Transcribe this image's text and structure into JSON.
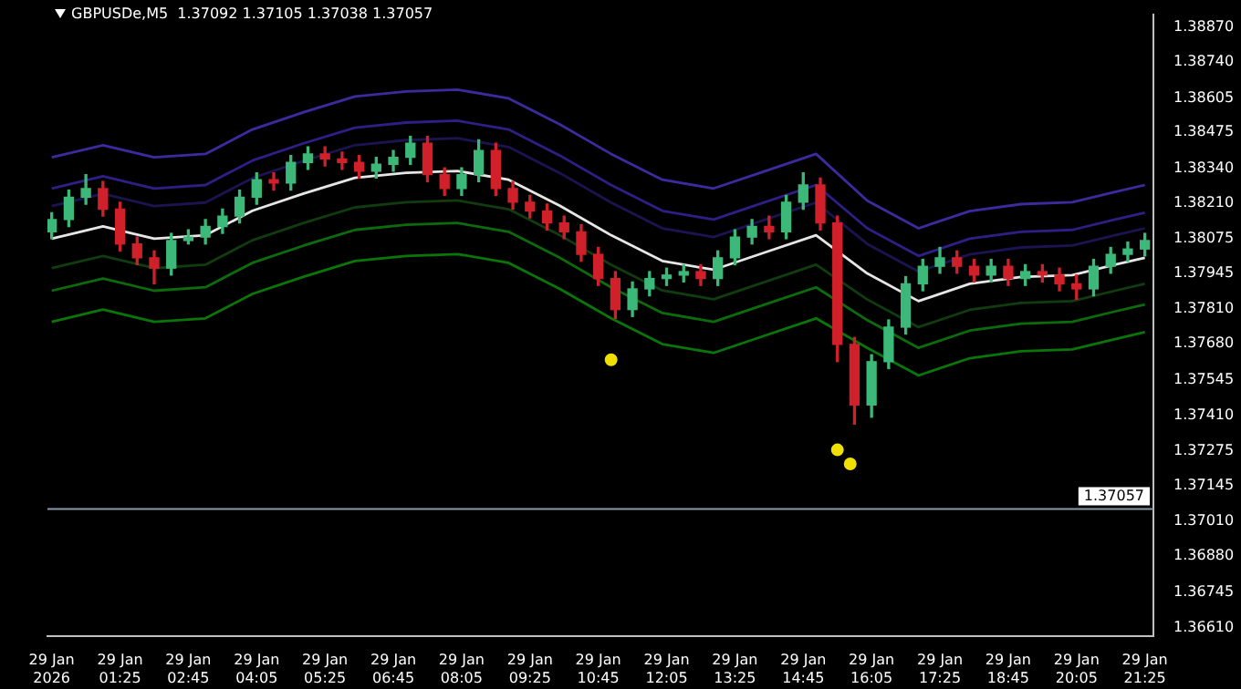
{
  "chart_data": {
    "type": "candlestick",
    "title": "GBPUSDe,M5  1.37092 1.37105 1.37038 1.37057",
    "x": [
      "2026-01-29T00:05",
      "2026-01-29T00:25",
      "2026-01-29T00:45",
      "2026-01-29T01:05",
      "2026-01-29T01:25",
      "2026-01-29T01:45",
      "2026-01-29T02:05",
      "2026-01-29T02:25",
      "2026-01-29T02:45",
      "2026-01-29T03:05",
      "2026-01-29T03:25",
      "2026-01-29T03:45",
      "2026-01-29T04:05",
      "2026-01-29T04:25",
      "2026-01-29T04:45",
      "2026-01-29T05:05",
      "2026-01-29T05:25",
      "2026-01-29T05:45",
      "2026-01-29T06:05",
      "2026-01-29T06:25",
      "2026-01-29T06:45",
      "2026-01-29T07:05",
      "2026-01-29T07:25",
      "2026-01-29T07:45",
      "2026-01-29T08:05",
      "2026-01-29T08:25",
      "2026-01-29T08:45",
      "2026-01-29T09:05",
      "2026-01-29T09:25",
      "2026-01-29T09:45",
      "2026-01-29T10:05",
      "2026-01-29T10:25",
      "2026-01-29T10:45",
      "2026-01-29T11:05",
      "2026-01-29T11:25",
      "2026-01-29T11:45",
      "2026-01-29T12:05",
      "2026-01-29T12:25",
      "2026-01-29T12:45",
      "2026-01-29T13:05",
      "2026-01-29T13:25",
      "2026-01-29T13:45",
      "2026-01-29T14:05",
      "2026-01-29T14:25",
      "2026-01-29T14:45",
      "2026-01-29T15:05",
      "2026-01-29T15:25",
      "2026-01-29T15:45",
      "2026-01-29T16:05",
      "2026-01-29T16:25",
      "2026-01-29T16:45",
      "2026-01-29T17:05",
      "2026-01-29T17:25",
      "2026-01-29T17:45",
      "2026-01-29T18:05",
      "2026-01-29T18:25",
      "2026-01-29T18:45",
      "2026-01-29T19:05",
      "2026-01-29T19:25",
      "2026-01-29T19:45",
      "2026-01-29T20:05",
      "2026-01-29T20:25",
      "2026-01-29T20:45",
      "2026-01-29T21:05",
      "2026-01-29T21:25"
    ],
    "ohlc": [
      [
        1.38101,
        1.38173,
        1.38075,
        1.38147
      ],
      [
        1.38147,
        1.38258,
        1.38121,
        1.38231
      ],
      [
        1.38231,
        1.38316,
        1.38205,
        1.38264
      ],
      [
        1.38264,
        1.3829,
        1.3816,
        1.38186
      ],
      [
        1.38186,
        1.38212,
        1.38029,
        1.38055
      ],
      [
        1.38055,
        1.38081,
        1.37977,
        1.38003
      ],
      [
        1.38003,
        1.38029,
        1.37905,
        1.37964
      ],
      [
        1.37964,
        1.38095,
        1.37938,
        1.38068
      ],
      [
        1.38068,
        1.38108,
        1.38055,
        1.38081
      ],
      [
        1.38081,
        1.38147,
        1.38055,
        1.38121
      ],
      [
        1.38121,
        1.38186,
        1.38095,
        1.3816
      ],
      [
        1.3816,
        1.38258,
        1.38134,
        1.38231
      ],
      [
        1.38231,
        1.38323,
        1.38205,
        1.38297
      ],
      [
        1.38297,
        1.38323,
        1.38258,
        1.38284
      ],
      [
        1.38284,
        1.38388,
        1.38258,
        1.38362
      ],
      [
        1.38362,
        1.38421,
        1.38336,
        1.38394
      ],
      [
        1.38394,
        1.38421,
        1.38349,
        1.38375
      ],
      [
        1.38375,
        1.38401,
        1.38336,
        1.38362
      ],
      [
        1.38362,
        1.38388,
        1.38303,
        1.38329
      ],
      [
        1.38329,
        1.38381,
        1.38303,
        1.38355
      ],
      [
        1.38355,
        1.38407,
        1.38329,
        1.38381
      ],
      [
        1.38381,
        1.3846,
        1.38355,
        1.38434
      ],
      [
        1.38434,
        1.3846,
        1.3829,
        1.38316
      ],
      [
        1.38316,
        1.38342,
        1.38238,
        1.38264
      ],
      [
        1.38264,
        1.38342,
        1.38238,
        1.38316
      ],
      [
        1.38316,
        1.38447,
        1.3829,
        1.38407
      ],
      [
        1.38407,
        1.38434,
        1.38238,
        1.38264
      ],
      [
        1.38264,
        1.3829,
        1.38186,
        1.38212
      ],
      [
        1.38212,
        1.38238,
        1.38153,
        1.38179
      ],
      [
        1.38179,
        1.38205,
        1.38108,
        1.38134
      ],
      [
        1.38134,
        1.3816,
        1.38075,
        1.38101
      ],
      [
        1.38101,
        1.38127,
        1.3799,
        1.38016
      ],
      [
        1.38016,
        1.38042,
        1.37899,
        1.37925
      ],
      [
        1.37925,
        1.37951,
        1.37775,
        1.37808
      ],
      [
        1.37808,
        1.37912,
        1.37782,
        1.37886
      ],
      [
        1.37886,
        1.37951,
        1.3786,
        1.37925
      ],
      [
        1.37925,
        1.37964,
        1.37899,
        1.37938
      ],
      [
        1.37938,
        1.37977,
        1.37912,
        1.37951
      ],
      [
        1.37951,
        1.37977,
        1.37899,
        1.37925
      ],
      [
        1.37925,
        1.38029,
        1.37899,
        1.38003
      ],
      [
        1.38003,
        1.38108,
        1.37977,
        1.38081
      ],
      [
        1.38081,
        1.38147,
        1.38055,
        1.38121
      ],
      [
        1.38121,
        1.3816,
        1.38075,
        1.38101
      ],
      [
        1.38101,
        1.38238,
        1.38075,
        1.38212
      ],
      [
        1.38212,
        1.38323,
        1.38186,
        1.38277
      ],
      [
        1.38277,
        1.38303,
        1.38108,
        1.38134
      ],
      [
        1.38134,
        1.3816,
        1.37612,
        1.37677
      ],
      [
        1.37677,
        1.37703,
        1.37377,
        1.37449
      ],
      [
        1.37449,
        1.37638,
        1.37403,
        1.37612
      ],
      [
        1.37612,
        1.37769,
        1.37586,
        1.37742
      ],
      [
        1.37742,
        1.37932,
        1.37716,
        1.37905
      ],
      [
        1.37905,
        1.37997,
        1.37879,
        1.37971
      ],
      [
        1.37971,
        1.38042,
        1.37945,
        1.38003
      ],
      [
        1.38003,
        1.38029,
        1.37945,
        1.37971
      ],
      [
        1.37971,
        1.37997,
        1.37912,
        1.37938
      ],
      [
        1.37938,
        1.37997,
        1.37912,
        1.37971
      ],
      [
        1.37971,
        1.37997,
        1.37899,
        1.37925
      ],
      [
        1.37925,
        1.37977,
        1.37899,
        1.37951
      ],
      [
        1.37951,
        1.37977,
        1.37912,
        1.37938
      ],
      [
        1.37938,
        1.37964,
        1.37879,
        1.37905
      ],
      [
        1.37905,
        1.37938,
        1.37847,
        1.37886
      ],
      [
        1.37886,
        1.37997,
        1.3786,
        1.37971
      ],
      [
        1.37971,
        1.38042,
        1.37945,
        1.38016
      ],
      [
        1.38016,
        1.38062,
        1.3799,
        1.38036
      ],
      [
        1.38036,
        1.38095,
        1.3801,
        1.38068
      ]
    ],
    "colors": [
      "#3cb878",
      "#3cb878",
      "#3cb878",
      "#d0202a",
      "#d0202a",
      "#d0202a",
      "#d0202a",
      "#3cb878",
      "#3cb878",
      "#3cb878",
      "#3cb878",
      "#3cb878",
      "#3cb878",
      "#d0202a",
      "#3cb878",
      "#3cb878",
      "#d0202a",
      "#d0202a",
      "#d0202a",
      "#3cb878",
      "#3cb878",
      "#3cb878",
      "#d0202a",
      "#d0202a",
      "#3cb878",
      "#3cb878",
      "#d0202a",
      "#d0202a",
      "#d0202a",
      "#d0202a",
      "#d0202a",
      "#d0202a",
      "#d0202a",
      "#d0202a",
      "#3cb878",
      "#3cb878",
      "#3cb878",
      "#3cb878",
      "#d0202a",
      "#3cb878",
      "#3cb878",
      "#3cb878",
      "#d0202a",
      "#3cb878",
      "#3cb878",
      "#d0202a",
      "#d0202a",
      "#d0202a",
      "#3cb878",
      "#3cb878",
      "#3cb878",
      "#3cb878",
      "#3cb878",
      "#d0202a",
      "#d0202a",
      "#3cb878",
      "#d0202a",
      "#3cb878",
      "#d0202a",
      "#d0202a",
      "#d0202a",
      "#3cb878",
      "#3cb878",
      "#3cb878",
      "#3cb878"
    ],
    "series": [
      {
        "type": "line",
        "color": "#3d2a9e",
        "x": [
          "2026-01-29T00:05",
          "2026-01-29T01:05",
          "2026-01-29T02:05",
          "2026-01-29T03:05",
          "2026-01-29T04:00",
          "2026-01-29T05:00",
          "2026-01-29T06:00",
          "2026-01-29T07:00",
          "2026-01-29T08:00",
          "2026-01-29T09:00",
          "2026-01-29T10:00",
          "2026-01-29T11:00",
          "2026-01-29T12:00",
          "2026-01-29T13:00",
          "2026-01-29T14:00",
          "2026-01-29T15:00",
          "2026-01-29T16:00",
          "2026-01-29T17:00",
          "2026-01-29T18:00",
          "2026-01-29T19:00",
          "2026-01-29T20:00",
          "2026-01-29T20:50",
          "2026-01-29T21:25"
        ],
        "values": [
          1.38381,
          1.38427,
          1.38381,
          1.38394,
          1.38486,
          1.38551,
          1.3861,
          1.38629,
          1.38636,
          1.38603,
          1.38505,
          1.38394,
          1.38297,
          1.38264,
          1.38329,
          1.38394,
          1.38218,
          1.38114,
          1.38179,
          1.38205,
          1.38212,
          1.38251,
          1.38277
        ]
      },
      {
        "type": "line",
        "color": "#2e1e86",
        "x": [
          "2026-01-29T00:05",
          "2026-01-29T01:05",
          "2026-01-29T02:05",
          "2026-01-29T03:05",
          "2026-01-29T04:00",
          "2026-01-29T05:00",
          "2026-01-29T06:00",
          "2026-01-29T07:00",
          "2026-01-29T08:00",
          "2026-01-29T09:00",
          "2026-01-29T10:00",
          "2026-01-29T11:00",
          "2026-01-29T12:00",
          "2026-01-29T13:00",
          "2026-01-29T14:00",
          "2026-01-29T15:00",
          "2026-01-29T16:00",
          "2026-01-29T17:00",
          "2026-01-29T18:00",
          "2026-01-29T19:00",
          "2026-01-29T20:00",
          "2026-01-29T20:50",
          "2026-01-29T21:25"
        ],
        "values": [
          1.38264,
          1.3831,
          1.38264,
          1.38277,
          1.38369,
          1.38434,
          1.38493,
          1.38512,
          1.38519,
          1.38486,
          1.38388,
          1.38277,
          1.3818,
          1.38147,
          1.38212,
          1.38277,
          1.38114,
          1.3801,
          1.38075,
          1.38101,
          1.38108,
          1.38147,
          1.38173
        ]
      },
      {
        "type": "line",
        "color": "#1c1450",
        "x": [
          "2026-01-29T00:05",
          "2026-01-29T01:05",
          "2026-01-29T02:05",
          "2026-01-29T03:05",
          "2026-01-29T04:00",
          "2026-01-29T05:00",
          "2026-01-29T06:00",
          "2026-01-29T07:00",
          "2026-01-29T08:00",
          "2026-01-29T09:00",
          "2026-01-29T10:00",
          "2026-01-29T11:00",
          "2026-01-29T12:00",
          "2026-01-29T13:00",
          "2026-01-29T14:00",
          "2026-01-29T15:00",
          "2026-01-29T16:00",
          "2026-01-29T17:00",
          "2026-01-29T18:00",
          "2026-01-29T19:00",
          "2026-01-29T20:00",
          "2026-01-29T20:50",
          "2026-01-29T21:25"
        ],
        "values": [
          1.38198,
          1.38244,
          1.38198,
          1.38211,
          1.38303,
          1.38368,
          1.38427,
          1.38446,
          1.38453,
          1.3842,
          1.38322,
          1.38211,
          1.38114,
          1.38081,
          1.38146,
          1.38211,
          1.38055,
          1.37951,
          1.38016,
          1.38042,
          1.38049,
          1.38088,
          1.38114
        ]
      },
      {
        "type": "line",
        "color": "#e6e6e6",
        "x": [
          "2026-01-29T00:05",
          "2026-01-29T01:05",
          "2026-01-29T02:05",
          "2026-01-29T03:05",
          "2026-01-29T04:00",
          "2026-01-29T05:00",
          "2026-01-29T06:00",
          "2026-01-29T07:00",
          "2026-01-29T08:00",
          "2026-01-29T09:00",
          "2026-01-29T10:00",
          "2026-01-29T11:00",
          "2026-01-29T12:00",
          "2026-01-29T13:00",
          "2026-01-29T14:00",
          "2026-01-29T15:00",
          "2026-01-29T16:00",
          "2026-01-29T17:00",
          "2026-01-29T18:00",
          "2026-01-29T19:00",
          "2026-01-29T20:00",
          "2026-01-29T20:50",
          "2026-01-29T21:25"
        ],
        "values": [
          1.38075,
          1.38121,
          1.38075,
          1.38088,
          1.3818,
          1.38245,
          1.38304,
          1.38323,
          1.3833,
          1.38297,
          1.38199,
          1.38088,
          1.37991,
          1.37958,
          1.38023,
          1.38088,
          1.37944,
          1.3784,
          1.37905,
          1.37931,
          1.37938,
          1.37977,
          1.38003
        ]
      },
      {
        "type": "line",
        "color": "#103c10",
        "x": [
          "2026-01-29T00:05",
          "2026-01-29T01:05",
          "2026-01-29T02:05",
          "2026-01-29T03:05",
          "2026-01-29T04:00",
          "2026-01-29T05:00",
          "2026-01-29T06:00",
          "2026-01-29T07:00",
          "2026-01-29T08:00",
          "2026-01-29T09:00",
          "2026-01-29T10:00",
          "2026-01-29T11:00",
          "2026-01-29T12:00",
          "2026-01-29T13:00",
          "2026-01-29T14:00",
          "2026-01-29T15:00",
          "2026-01-29T16:00",
          "2026-01-29T17:00",
          "2026-01-29T18:00",
          "2026-01-29T19:00",
          "2026-01-29T20:00",
          "2026-01-29T20:50",
          "2026-01-29T21:25"
        ],
        "values": [
          1.37964,
          1.3801,
          1.37964,
          1.37977,
          1.38069,
          1.38134,
          1.38193,
          1.38212,
          1.38219,
          1.38186,
          1.38088,
          1.37977,
          1.3788,
          1.37847,
          1.37912,
          1.37977,
          1.37846,
          1.37742,
          1.37807,
          1.37833,
          1.3784,
          1.37879,
          1.37905
        ]
      },
      {
        "type": "line",
        "color": "#0c6c0c",
        "x": [
          "2026-01-29T00:05",
          "2026-01-29T01:05",
          "2026-01-29T02:05",
          "2026-01-29T03:05",
          "2026-01-29T04:00",
          "2026-01-29T05:00",
          "2026-01-29T06:00",
          "2026-01-29T07:00",
          "2026-01-29T08:00",
          "2026-01-29T09:00",
          "2026-01-29T10:00",
          "2026-01-29T11:00",
          "2026-01-29T12:00",
          "2026-01-29T13:00",
          "2026-01-29T14:00",
          "2026-01-29T15:00",
          "2026-01-29T16:00",
          "2026-01-29T17:00",
          "2026-01-29T18:00",
          "2026-01-29T19:00",
          "2026-01-29T20:00",
          "2026-01-29T20:50",
          "2026-01-29T21:25"
        ],
        "values": [
          1.37879,
          1.37925,
          1.37879,
          1.37892,
          1.37984,
          1.38049,
          1.38108,
          1.38127,
          1.38134,
          1.38101,
          1.38003,
          1.37892,
          1.37795,
          1.37762,
          1.37827,
          1.37892,
          1.37768,
          1.37664,
          1.37729,
          1.37755,
          1.37762,
          1.37801,
          1.37827
        ]
      },
      {
        "type": "line",
        "color": "#0a760a",
        "x": [
          "2026-01-29T00:05",
          "2026-01-29T01:05",
          "2026-01-29T02:05",
          "2026-01-29T03:05",
          "2026-01-29T04:00",
          "2026-01-29T05:00",
          "2026-01-29T06:00",
          "2026-01-29T07:00",
          "2026-01-29T08:00",
          "2026-01-29T09:00",
          "2026-01-29T10:00",
          "2026-01-29T11:00",
          "2026-01-29T12:00",
          "2026-01-29T13:00",
          "2026-01-29T14:00",
          "2026-01-29T15:00",
          "2026-01-29T16:00",
          "2026-01-29T17:00",
          "2026-01-29T18:00",
          "2026-01-29T19:00",
          "2026-01-29T20:00",
          "2026-01-29T20:50",
          "2026-01-29T21:25"
        ],
        "values": [
          1.37762,
          1.37808,
          1.37762,
          1.37775,
          1.37867,
          1.37932,
          1.37991,
          1.3801,
          1.38017,
          1.37984,
          1.37886,
          1.37775,
          1.37678,
          1.37645,
          1.3771,
          1.37775,
          1.37664,
          1.3756,
          1.37625,
          1.37651,
          1.37658,
          1.37697,
          1.37723
        ]
      },
      {
        "type": "scatter",
        "color": "#f0e000",
        "marker": "circle",
        "x": [
          "2026-01-29T11:00",
          "2026-01-29T15:25",
          "2026-01-29T15:40"
        ],
        "values": [
          1.37619,
          1.3728,
          1.37227
        ]
      }
    ],
    "xlim": [
      "2026-01-29T00:00",
      "2026-01-29T21:35"
    ],
    "xticks": [
      {
        "value": "2026-01-29T00:05",
        "label": "29 Jan 2026"
      },
      {
        "value": "2026-01-29T01:25",
        "label": "29 Jan 01:25"
      },
      {
        "value": "2026-01-29T02:45",
        "label": "29 Jan 02:45"
      },
      {
        "value": "2026-01-29T04:05",
        "label": "29 Jan 04:05"
      },
      {
        "value": "2026-01-29T05:25",
        "label": "29 Jan 05:25"
      },
      {
        "value": "2026-01-29T06:45",
        "label": "29 Jan 06:45"
      },
      {
        "value": "2026-01-29T08:05",
        "label": "29 Jan 08:05"
      },
      {
        "value": "2026-01-29T09:25",
        "label": "29 Jan 09:25"
      },
      {
        "value": "2026-01-29T10:45",
        "label": "29 Jan 10:45"
      },
      {
        "value": "2026-01-29T12:05",
        "label": "29 Jan 12:05"
      },
      {
        "value": "2026-01-29T13:25",
        "label": "29 Jan 13:25"
      },
      {
        "value": "2026-01-29T14:45",
        "label": "29 Jan 14:45"
      },
      {
        "value": "2026-01-29T16:05",
        "label": "29 Jan 16:05"
      },
      {
        "value": "2026-01-29T17:25",
        "label": "29 Jan 17:25"
      },
      {
        "value": "2026-01-29T18:45",
        "label": "29 Jan 18:45"
      },
      {
        "value": "2026-01-29T20:05",
        "label": "29 Jan 20:05"
      },
      {
        "value": "2026-01-29T21:25",
        "label": "29 Jan 21:25"
      }
    ],
    "ylim": [
      1.3658,
      1.3892
    ],
    "yticks": [
      {
        "value": 1.3887,
        "label": "1.38870"
      },
      {
        "value": 1.3874,
        "label": "1.38740"
      },
      {
        "value": 1.38605,
        "label": "1.38605"
      },
      {
        "value": 1.38475,
        "label": "1.38475"
      },
      {
        "value": 1.3834,
        "label": "1.38340"
      },
      {
        "value": 1.3821,
        "label": "1.38210"
      },
      {
        "value": 1.38075,
        "label": "1.38075"
      },
      {
        "value": 1.37945,
        "label": "1.37945"
      },
      {
        "value": 1.3781,
        "label": "1.37810"
      },
      {
        "value": 1.3768,
        "label": "1.37680"
      },
      {
        "value": 1.37545,
        "label": "1.37545"
      },
      {
        "value": 1.3741,
        "label": "1.37410"
      },
      {
        "value": 1.37275,
        "label": "1.37275"
      },
      {
        "value": 1.37145,
        "label": "1.37145"
      },
      {
        "value": 1.3701,
        "label": "1.37010"
      },
      {
        "value": 1.3688,
        "label": "1.36880"
      },
      {
        "value": 1.36745,
        "label": "1.36745"
      },
      {
        "value": 1.3661,
        "label": "1.36610"
      }
    ],
    "ref_lines": [
      {
        "axis": "y",
        "value": 1.37057,
        "label": "1.37057",
        "color": "#8a9aa8"
      }
    ]
  }
}
